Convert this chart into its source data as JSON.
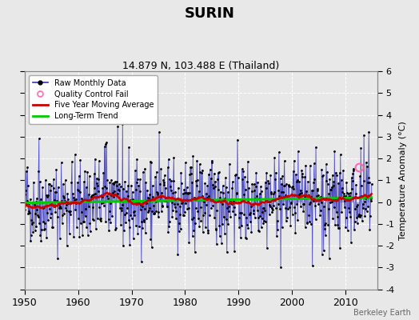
{
  "title": "SURIN",
  "subtitle": "14.879 N, 103.488 E (Thailand)",
  "ylabel": "Temperature Anomaly (°C)",
  "watermark": "Berkeley Earth",
  "xlim": [
    1950,
    2016
  ],
  "ylim": [
    -4,
    6
  ],
  "yticks": [
    -4,
    -3,
    -2,
    -1,
    0,
    1,
    2,
    3,
    4,
    5,
    6
  ],
  "xticks": [
    1950,
    1960,
    1970,
    1980,
    1990,
    2000,
    2010
  ],
  "start_year": 1950,
  "n_months": 780,
  "raw_color": "#3333bb",
  "moving_avg_color": "#cc0000",
  "trend_color": "#00cc00",
  "qc_fail_color": "#ff69b4",
  "bg_color": "#e8e8e8",
  "grid_color": "#ffffff",
  "random_seed": 42,
  "qc_t": 2012.5,
  "qc_val": 1.6
}
